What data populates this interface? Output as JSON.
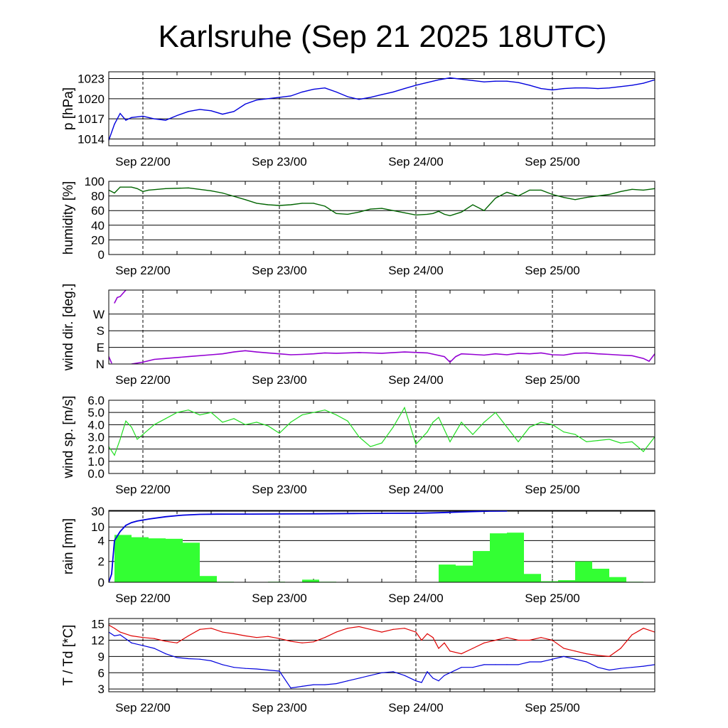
{
  "title": "Karlsruhe (Sep 21 2025 18UTC)",
  "x_labels": [
    "Sep 22/00",
    "Sep 23/00",
    "Sep 24/00",
    "Sep 25/00"
  ],
  "colors": {
    "pressure": "#0000dd",
    "humidity": "#006400",
    "wind_dir": "#9400d3",
    "wind_speed": "#22dd22",
    "rain_bar": "#33ff33",
    "rain_total": "#0000dd",
    "temperature": "#dd0000",
    "dewpoint": "#0000dd"
  },
  "chart_data": [
    {
      "type": "line",
      "ylabel": "p [hPa]",
      "ylim": [
        1013,
        1024
      ],
      "yticks": [
        1014,
        1017,
        1020,
        1023
      ],
      "ytick_labels": [
        "1014",
        "1017",
        "1020",
        "1023"
      ],
      "x_hours": [
        0,
        1,
        2,
        3,
        4,
        6,
        8,
        10,
        12,
        14,
        16,
        18,
        20,
        22,
        24,
        26,
        28,
        30,
        32,
        34,
        36,
        38,
        40,
        42,
        44,
        46,
        48,
        50,
        52,
        54,
        56,
        58,
        60,
        62,
        64,
        66,
        68,
        70,
        72,
        74,
        76,
        78,
        80,
        82,
        84,
        86,
        88,
        90,
        92,
        94,
        96
      ],
      "values": [
        1013.8,
        1016.2,
        1017.8,
        1016.8,
        1017.2,
        1017.4,
        1017.0,
        1016.8,
        1017.5,
        1018.1,
        1018.4,
        1018.2,
        1017.7,
        1018.1,
        1019.2,
        1019.8,
        1020.0,
        1020.2,
        1020.4,
        1021.0,
        1021.4,
        1021.6,
        1021.0,
        1020.3,
        1019.9,
        1020.2,
        1020.6,
        1021.0,
        1021.5,
        1022.0,
        1022.4,
        1022.8,
        1023.1,
        1022.9,
        1022.7,
        1022.5,
        1022.6,
        1022.6,
        1022.4,
        1022.0,
        1021.5,
        1021.3,
        1021.5,
        1021.6,
        1021.6,
        1021.5,
        1021.6,
        1021.8,
        1022.0,
        1022.3,
        1022.8
      ]
    },
    {
      "type": "line",
      "ylabel": "humidity [%]",
      "ylim": [
        0,
        100
      ],
      "yticks": [
        0,
        20,
        40,
        60,
        80,
        100
      ],
      "ytick_labels": [
        "0",
        "20",
        "40",
        "60",
        "80",
        "100"
      ],
      "x_hours": [
        0,
        1,
        2,
        4,
        5,
        6,
        7,
        10,
        14,
        18,
        20,
        24,
        26,
        28,
        30,
        32,
        34,
        36,
        38,
        40,
        42,
        44,
        46,
        48,
        50,
        52,
        54,
        56,
        57,
        58,
        59,
        60,
        62,
        64,
        66,
        68,
        70,
        72,
        74,
        76,
        78,
        80,
        82,
        84,
        86,
        88,
        90,
        92,
        94,
        96
      ],
      "values": [
        88,
        84,
        92,
        92,
        90,
        86,
        88,
        90,
        91,
        87,
        84,
        75,
        70,
        68,
        67,
        68,
        70,
        70,
        66,
        56,
        55,
        58,
        62,
        63,
        60,
        57,
        54,
        55,
        56,
        59,
        55,
        53,
        58,
        68,
        60,
        77,
        85,
        80,
        88,
        88,
        82,
        78,
        75,
        78,
        80,
        82,
        86,
        89,
        88,
        90
      ]
    },
    {
      "type": "line",
      "ylabel": "wind dir. [deg.]",
      "ylim": [
        0,
        400
      ],
      "yticks": [
        0,
        90,
        180,
        270
      ],
      "ytick_labels": [
        "N",
        "E",
        "S",
        "W"
      ],
      "x_hours": [
        0,
        0.5,
        1,
        1.5,
        2,
        3,
        4,
        6,
        8,
        10,
        14,
        18,
        20,
        22,
        24,
        26,
        28,
        30,
        32,
        34,
        36,
        38,
        40,
        44,
        48,
        52,
        56,
        59,
        60,
        61,
        62,
        64,
        66,
        68,
        70,
        72,
        74,
        76,
        78,
        80,
        82,
        84,
        86,
        88,
        90,
        92,
        94,
        95,
        96
      ],
      "values": [
        40,
        5,
        330,
        360,
        365,
        400,
        0,
        10,
        25,
        30,
        40,
        50,
        55,
        65,
        72,
        65,
        60,
        55,
        50,
        52,
        55,
        60,
        58,
        62,
        58,
        65,
        60,
        40,
        10,
        40,
        55,
        52,
        48,
        55,
        50,
        58,
        55,
        60,
        50,
        48,
        58,
        60,
        55,
        52,
        48,
        45,
        30,
        15,
        55
      ]
    },
    {
      "type": "line",
      "ylabel": "wind sp. [m/s]",
      "ylim": [
        0,
        6.0
      ],
      "yticks": [
        0,
        1,
        2,
        3,
        4,
        5,
        6
      ],
      "ytick_labels": [
        "0.0",
        "1.0",
        "2.0",
        "3.0",
        "4.0",
        "5.0",
        "6.0"
      ],
      "x_hours": [
        0,
        1,
        2,
        3,
        4,
        5,
        6,
        7,
        8,
        10,
        12,
        14,
        16,
        18,
        20,
        22,
        24,
        26,
        28,
        30,
        32,
        34,
        36,
        38,
        40,
        42,
        44,
        46,
        48,
        50,
        52,
        54,
        56,
        57,
        58,
        59,
        60,
        62,
        64,
        66,
        68,
        70,
        72,
        74,
        76,
        78,
        80,
        82,
        84,
        86,
        88,
        90,
        92,
        94,
        96
      ],
      "values": [
        2.2,
        1.5,
        2.8,
        4.3,
        3.8,
        2.8,
        3.2,
        3.6,
        4.0,
        4.5,
        5.0,
        5.2,
        4.8,
        5.0,
        4.2,
        4.5,
        4.0,
        4.2,
        3.9,
        3.3,
        4.2,
        4.8,
        5.0,
        5.2,
        4.8,
        4.3,
        3.0,
        2.2,
        2.5,
        3.8,
        5.4,
        2.4,
        3.4,
        4.2,
        4.6,
        3.6,
        2.6,
        4.2,
        3.2,
        4.2,
        5.0,
        3.8,
        2.6,
        3.8,
        4.2,
        4.0,
        3.4,
        3.2,
        2.6,
        2.7,
        2.8,
        2.5,
        2.6,
        1.8,
        3.0
      ]
    },
    {
      "type": "bar",
      "ylabel": "rain [mm]",
      "ytick_values": [
        0,
        2,
        4,
        10,
        30
      ],
      "ytick_labels": [
        "0",
        "2",
        "4",
        "10",
        "30"
      ],
      "bar_width_hours": 3,
      "bar_starts": [
        1,
        4,
        7,
        10,
        13,
        16,
        19,
        22,
        25,
        28,
        31,
        34,
        37,
        40,
        43,
        46,
        49,
        52,
        55,
        58,
        61,
        64,
        67,
        70,
        73,
        76,
        79,
        82,
        85,
        88,
        91,
        94
      ],
      "bar_values": [
        6.5,
        5.5,
        5.0,
        4.8,
        3.8,
        0.6,
        0.05,
        0,
        0,
        0.05,
        0,
        0.25,
        0.05,
        0,
        0,
        0,
        0,
        0,
        0,
        1.7,
        1.6,
        3.0,
        7.2,
        7.5,
        0.8,
        0.1,
        0.2,
        2.0,
        1.3,
        0.5,
        0.05,
        0
      ],
      "cumulative_x_hours": [
        0,
        0.5,
        1,
        2,
        3,
        4,
        5,
        7,
        10,
        13,
        16,
        19,
        25,
        31,
        37,
        43,
        49,
        55,
        58,
        60,
        64,
        67,
        70
      ],
      "cumulative_values": [
        0,
        0.8,
        4.0,
        8.0,
        12.0,
        15.5,
        17.5,
        20.0,
        23.0,
        25.0,
        26.0,
        26.2,
        26.3,
        26.5,
        26.7,
        27.0,
        27.3,
        27.5,
        28.0,
        28.5,
        29.5,
        30.5,
        31.5
      ]
    },
    {
      "type": "line",
      "ylabel": "T / Td [*C]",
      "ylim": [
        2.5,
        16
      ],
      "yticks": [
        3,
        6,
        9,
        12,
        15
      ],
      "ytick_labels": [
        "3",
        "6",
        "9",
        "12",
        "15"
      ],
      "series": [
        {
          "key": "temperature",
          "x_hours": [
            0,
            1,
            2,
            4,
            6,
            8,
            10,
            12,
            14,
            16,
            18,
            20,
            22,
            24,
            26,
            28,
            30,
            32,
            34,
            36,
            38,
            40,
            42,
            44,
            46,
            48,
            50,
            52,
            54,
            55,
            56,
            57,
            58,
            59,
            60,
            62,
            64,
            66,
            68,
            70,
            72,
            74,
            76,
            78,
            80,
            82,
            84,
            86,
            88,
            90,
            92,
            94,
            96
          ],
          "values": [
            14.8,
            14.2,
            13.5,
            12.8,
            12.5,
            12.3,
            11.8,
            11.5,
            12.8,
            14.0,
            14.2,
            13.5,
            13.2,
            12.8,
            12.5,
            12.7,
            12.3,
            11.8,
            11.5,
            11.7,
            12.5,
            13.5,
            14.2,
            14.5,
            14.0,
            13.5,
            14.0,
            14.2,
            13.5,
            12.0,
            13.2,
            12.5,
            10.5,
            11.5,
            10.0,
            9.5,
            10.5,
            11.5,
            12.0,
            12.5,
            12.0,
            12.0,
            12.5,
            12.0,
            10.5,
            10.0,
            9.5,
            9.2,
            9.0,
            10.5,
            13.0,
            14.2,
            13.5
          ]
        },
        {
          "key": "dewpoint",
          "x_hours": [
            0,
            1,
            2,
            4,
            6,
            8,
            10,
            12,
            14,
            16,
            18,
            20,
            22,
            24,
            26,
            28,
            30,
            32,
            34,
            36,
            38,
            40,
            42,
            44,
            46,
            48,
            50,
            52,
            54,
            55,
            56,
            57,
            58,
            59,
            60,
            62,
            64,
            66,
            68,
            70,
            72,
            74,
            76,
            78,
            80,
            82,
            84,
            86,
            88,
            90,
            92,
            94,
            96
          ],
          "values": [
            13.5,
            12.8,
            13.0,
            11.5,
            11.0,
            10.5,
            9.5,
            8.8,
            8.6,
            8.5,
            8.2,
            7.5,
            7.0,
            6.8,
            6.7,
            6.5,
            6.3,
            3.2,
            3.5,
            3.8,
            3.8,
            4.0,
            4.5,
            5.0,
            5.5,
            6.0,
            6.2,
            5.5,
            4.5,
            4.2,
            6.2,
            5.0,
            4.5,
            5.5,
            6.0,
            7.0,
            7.0,
            7.5,
            7.5,
            7.5,
            7.5,
            8.0,
            8.0,
            8.5,
            9.0,
            8.5,
            8.0,
            7.0,
            6.5,
            6.8,
            7.0,
            7.2,
            7.5
          ]
        }
      ]
    }
  ]
}
